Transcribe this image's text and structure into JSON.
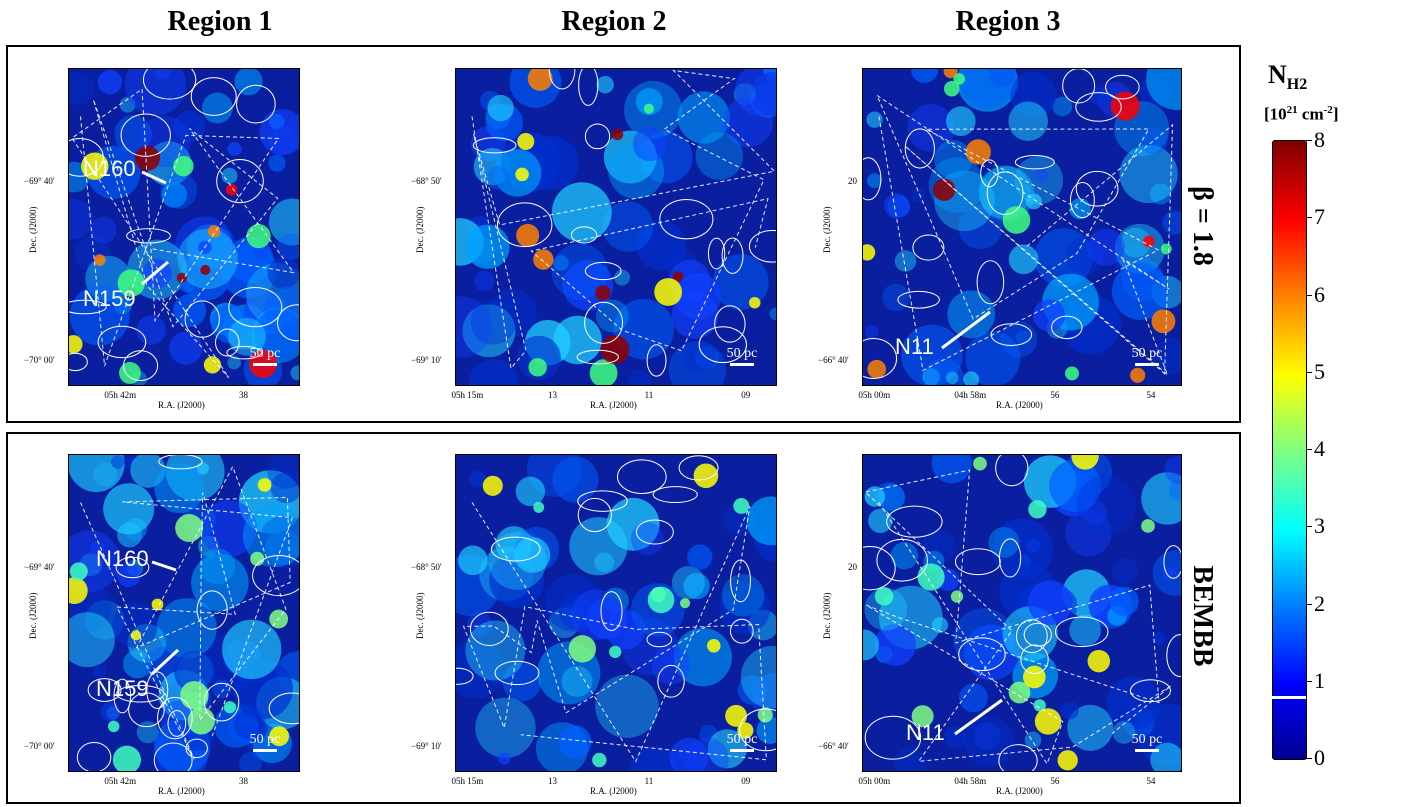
{
  "columns": [
    "Region 1",
    "Region 2",
    "Region 3"
  ],
  "rows": [
    "β = 1.8",
    "BEMBB"
  ],
  "colorbar": {
    "title_main": "N",
    "title_sub": "H2",
    "unit_pre": "[10",
    "unit_sup": "21",
    "unit_mid": " cm",
    "unit_sup2": "-2",
    "unit_post": "]",
    "ticks": [
      "0",
      "1",
      "2",
      "3",
      "4",
      "5",
      "6",
      "7",
      "8"
    ],
    "marker_value": 0.8
  },
  "scalebar_label": "50 pc",
  "axes": {
    "xlabel": "R.A. (J2000)",
    "ylabel": "Dec. (J2000)",
    "region1": {
      "xticks": [
        "05h 42m",
        "38"
      ],
      "yticks": [
        "−69° 40′",
        "−70° 00′"
      ]
    },
    "region2": {
      "xticks": [
        "05h 15m",
        "13",
        "11",
        "09"
      ],
      "yticks": [
        "−68° 50′",
        "−69° 10′"
      ]
    },
    "region3": {
      "xticks": [
        "05h 00m",
        "04h 58m",
        "56",
        "54"
      ],
      "yticks": [
        "20",
        "−66° 40′"
      ]
    }
  },
  "annotations": {
    "region1_a": "N160",
    "region1_b": "N159",
    "region3": "N11"
  },
  "colors": {
    "background_map": "#0a1fa0",
    "contour": "#ffffff"
  }
}
